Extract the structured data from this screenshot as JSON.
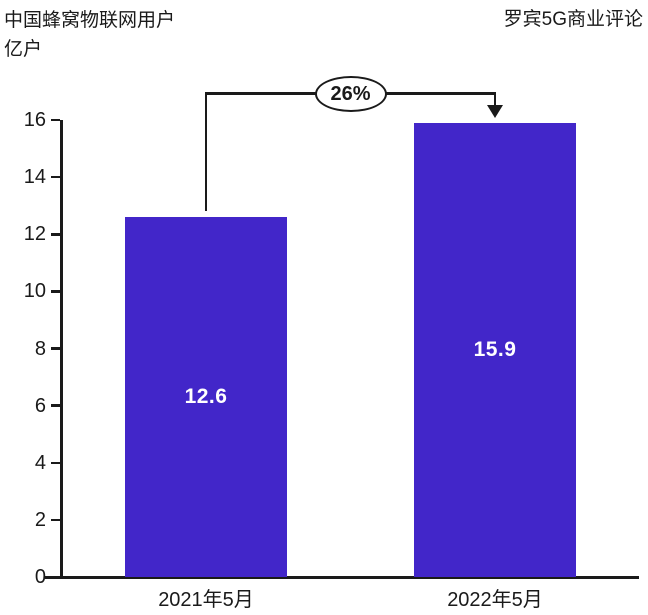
{
  "header": {
    "title": "中国蜂窝物联网用户",
    "unit": "亿户",
    "source": "罗宾5G商业评论"
  },
  "chart_data": {
    "type": "bar",
    "title": "中国蜂窝物联网用户",
    "ylabel": "亿户",
    "source": "罗宾5G商业评论",
    "categories": [
      "2021年5月",
      "2022年5月"
    ],
    "values": [
      12.6,
      15.9
    ],
    "growth_label": "26%",
    "ylim": [
      0,
      16
    ],
    "yticks": [
      0,
      2,
      4,
      6,
      8,
      10,
      12,
      14,
      16
    ],
    "grid": false,
    "legend": false,
    "bar_color": "#4226C9",
    "value_label_color": "#ffffff",
    "axis_color": "#1a1a1a"
  }
}
